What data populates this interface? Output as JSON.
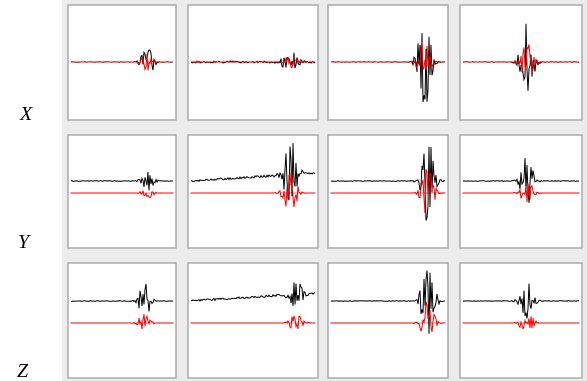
{
  "row_labels": [
    "X",
    "Y",
    "Z"
  ]
}
